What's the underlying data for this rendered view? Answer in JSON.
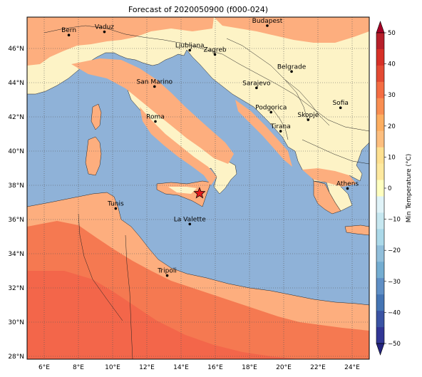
{
  "title": "Forecast of 2020050900 (f000-024)",
  "lon_ticks": [
    "6°E",
    "8°E",
    "10°E",
    "12°E",
    "14°E",
    "16°E",
    "18°E",
    "20°E",
    "22°E",
    "24°E"
  ],
  "lat_ticks": [
    "46°N",
    "44°N",
    "42°N",
    "40°N",
    "38°N",
    "36°N",
    "34°N",
    "32°N",
    "30°N",
    "28°N"
  ],
  "cities": [
    {
      "name": "Bern",
      "lon": 7.44,
      "lat": 46.95
    },
    {
      "name": "Vaduz",
      "lon": 9.52,
      "lat": 47.14
    },
    {
      "name": "Budapest",
      "lon": 19.04,
      "lat": 47.5
    },
    {
      "name": "Ljubljana",
      "lon": 14.51,
      "lat": 46.06
    },
    {
      "name": "Zagreb",
      "lon": 15.98,
      "lat": 45.82
    },
    {
      "name": "Belgrade",
      "lon": 20.46,
      "lat": 44.82
    },
    {
      "name": "San Marino",
      "lon": 12.45,
      "lat": 43.94
    },
    {
      "name": "Sarajevo",
      "lon": 18.41,
      "lat": 43.86
    },
    {
      "name": "Sofia",
      "lon": 23.32,
      "lat": 42.7
    },
    {
      "name": "Podgorica",
      "lon": 19.26,
      "lat": 42.44
    },
    {
      "name": "Skopje",
      "lon": 21.43,
      "lat": 42.0
    },
    {
      "name": "Roma",
      "lon": 12.5,
      "lat": 41.9
    },
    {
      "name": "Tirana",
      "lon": 19.82,
      "lat": 41.33
    },
    {
      "name": "Athens",
      "lon": 23.73,
      "lat": 37.98
    },
    {
      "name": "Tunis",
      "lon": 10.18,
      "lat": 36.81
    },
    {
      "name": "La Valette",
      "lon": 14.51,
      "lat": 35.9
    },
    {
      "name": "Tripoli",
      "lon": 13.19,
      "lat": 32.89
    }
  ],
  "marker": {
    "symbol": "star-icon",
    "lon": 15.08,
    "lat": 37.7,
    "color": "#e31a1c"
  },
  "colorbar": {
    "title": "Min Temperature (°C)",
    "ticks": [
      "50",
      "40",
      "30",
      "20",
      "10",
      "0",
      "−10",
      "−20",
      "−30",
      "−40",
      "−50"
    ],
    "levels": [
      -50,
      -45,
      -40,
      -35,
      -30,
      -25,
      -20,
      -15,
      -10,
      -5,
      0,
      5,
      10,
      15,
      20,
      25,
      30,
      35,
      40,
      45,
      50
    ],
    "colors": [
      "#24247f",
      "#313695",
      "#3a53a4",
      "#4575b4",
      "#5f8fc5",
      "#74add1",
      "#91bfdb",
      "#abd9e9",
      "#c6e7f0",
      "#e0f3f8",
      "#ffffbf",
      "#fee99f",
      "#fee090",
      "#fdbe7e",
      "#fdae61",
      "#f98e52",
      "#f46d43",
      "#e34a33",
      "#d73027",
      "#b71f2a",
      "#a50026"
    ]
  },
  "colors": {
    "sea": "#8fb2d8",
    "cool_land": "#fdf3c6",
    "mild_land": "#fdae7e",
    "warm_land": "#f57951",
    "warmer_land": "#f3664a"
  }
}
